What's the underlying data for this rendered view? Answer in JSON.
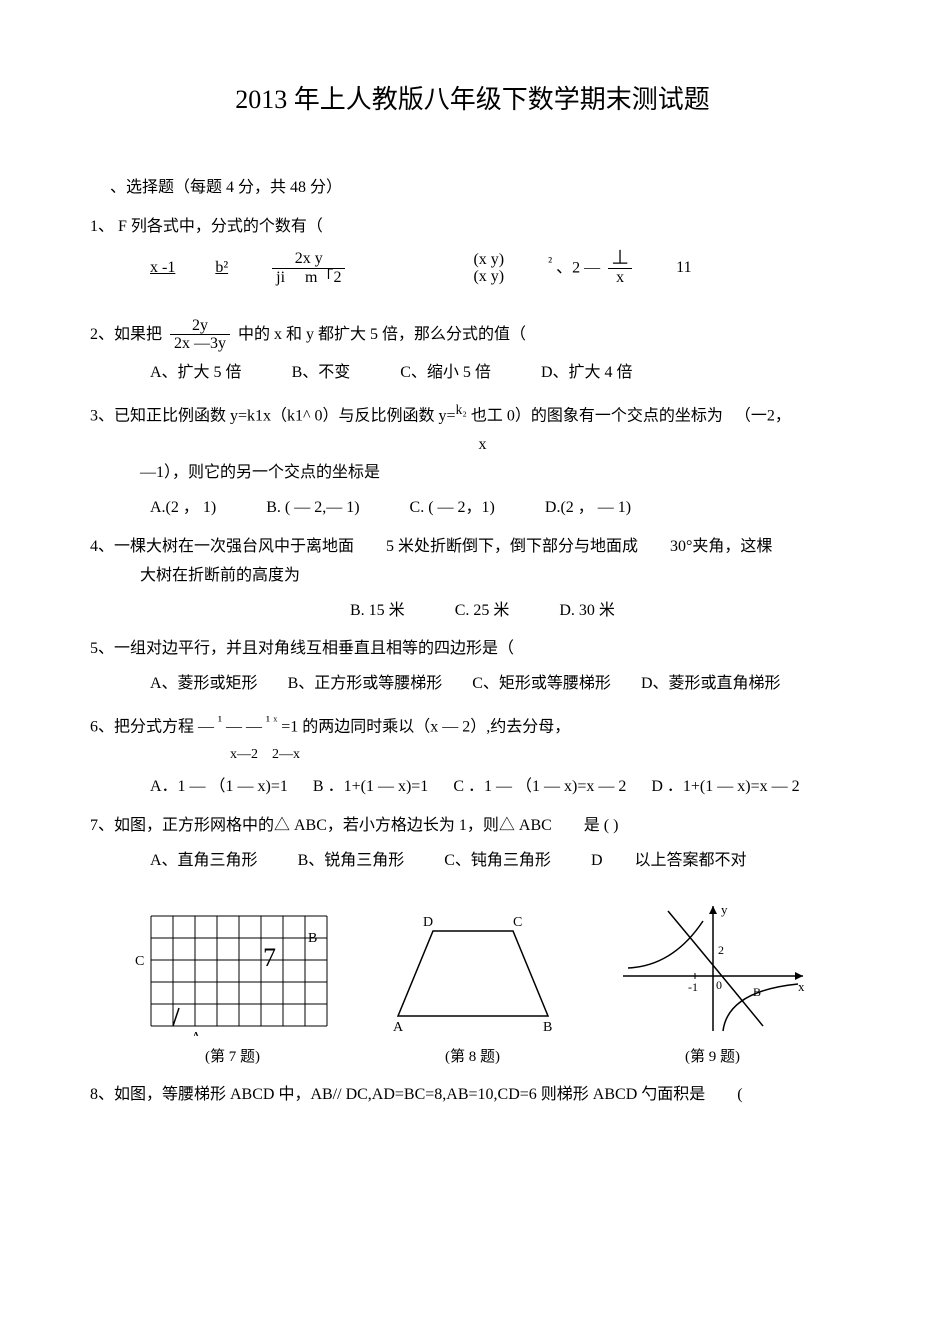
{
  "title": "2013 年上人教版八年级下数学期末测试题",
  "section": "、选择题（每题 4 分，共 48 分）",
  "q1": {
    "stem": "1、  F 列各式中，分式的个数有（",
    "e1_num": "x -1",
    "e2_num": "b²",
    "e3_num": "2x y",
    "e3_den1": "ji",
    "e3_den2": "m「2",
    "e4a": "(x  y)",
    "e4b": "(x  y)",
    "e5_sup": "²",
    "e5_txt": "、2 —",
    "e5_frac_num": "丄",
    "e5_frac_den": "x",
    "e6": "11"
  },
  "q2": {
    "pre": "2、如果把",
    "frac_num": "2y",
    "frac_den": "2x —3y",
    "post": "中的 x 和 y 都扩大 5 倍，那么分式的值（",
    "a": "A、扩大 5 倍",
    "b": "B、不变",
    "c": "C、缩小 5 倍",
    "d": "D、扩大 4 倍"
  },
  "q3": {
    "line1a": "3、已知正比例函数 y=k1x（k1^ 0）与反比例函数 y=",
    "line1b": "也工 0）的图象有一个交点的坐标为",
    "line1c": "（一2，",
    "sup": "k₂",
    "xline": "x",
    "line2": "—1），则它的另一个交点的坐标是",
    "a": "A.(2 ， 1)",
    "b": "B. ( — 2,— 1)",
    "c": "C. ( — 2，1)",
    "d": "D.(2 ， — 1)"
  },
  "q4": {
    "line1": "4、一棵大树在一次强台风中于离地面  5 米处折断倒下，倒下部分与地面成  30°夹角，这棵",
    "line2": "大树在折断前的高度为",
    "b": "B.   15 米",
    "c": "C.   25 米",
    "d": "D.   30 米"
  },
  "q5": {
    "stem": "5、一组对边平行，并且对角线互相垂直且相等的四边形是（",
    "a": "A、菱形或矩形",
    "b": "B、正方形或等腰梯形",
    "c": "C、矩形或等腰梯形",
    "d": "D、菱形或直角梯形"
  },
  "q6": {
    "pre": "6、把分式方程  —",
    "mid1": "— —",
    "mid2": "=1 的两边同时乘以（x — 2）,约去分母，",
    "sup1": "¹",
    "sup2": "¹ ˣ",
    "den1": "x—2",
    "den2": "2—x",
    "a": "A．1 — （1 — x)=1",
    "b": "B ．1+(1 — x)=1",
    "c": "C ．1 — （1 — x)=x — 2",
    "d": "D ．1+(1 — x)=x — 2"
  },
  "q7": {
    "stem": "7、如图，正方形网格中的△  ABC，若小方格边长为 1，则△  ABC  是 (    )",
    "a": "A、直角三角形",
    "b": "B、锐角三角形",
    "c": "C、钝角三角形",
    "d": "D  以上答案都不对"
  },
  "figs": {
    "cap7": "(第 7 题)",
    "cap8": "(第 8 题)",
    "cap9": "(第 9 题)",
    "grid": {
      "cols": 8,
      "rows": 5,
      "cell": 22,
      "C_label": "C",
      "A_label": "A",
      "B_label": "B",
      "seven": "7"
    },
    "trap": {
      "A": "A",
      "B": "B",
      "C": "C",
      "D": "D"
    },
    "graph": {
      "x": "x",
      "y": "y",
      "n1": "-1",
      "n2": "2",
      "zero": "0",
      "Blab": "B"
    }
  },
  "q8": {
    "stem": "8、如图，等腰梯形  ABCD 中，AB// DC,AD=BC=8,AB=10,CD=6 则梯形 ABCD 勺面积是  ("
  },
  "colors": {
    "text": "#000000",
    "bg": "#ffffff",
    "line": "#000000"
  }
}
